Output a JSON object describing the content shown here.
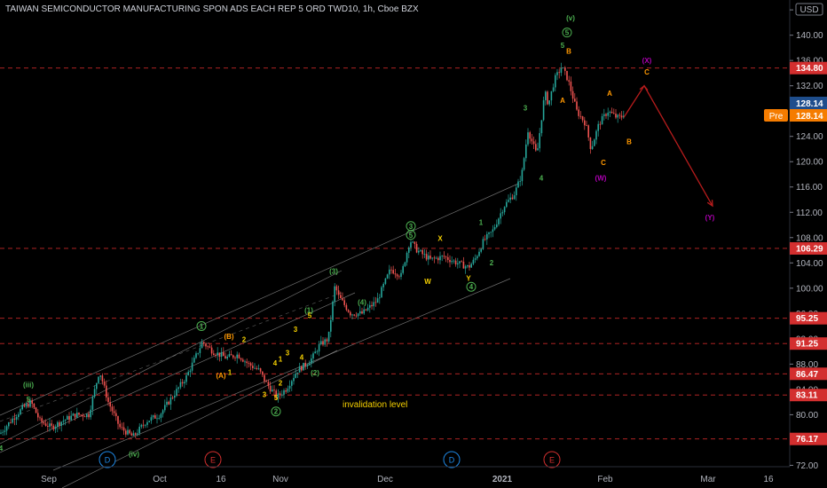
{
  "header": {
    "title": "TAIWAN SEMICONDUCTOR MANUFACTURING SPON ADS EACH REP 5 ORD TWD10, 1h, Cboe BZX",
    "currency": "USD"
  },
  "colors": {
    "background": "#000000",
    "level_line": "#c62828",
    "level_tag": "#d32f2f",
    "last_price_tag": "#1e4d8c",
    "pre_tag": "#f57c00",
    "candle_up": "#26a69a",
    "candle_down": "#ef5350",
    "projection": "#b71c1c",
    "channel": "#9e9e9e"
  },
  "annotation": {
    "text": "invalidation level",
    "color": "#f5d000"
  },
  "last_price": "128.14",
  "pre": {
    "label": "Pre",
    "value": "128.14"
  },
  "chart_data": {
    "type": "candlestick",
    "title": "TAIWAN SEMICONDUCTOR MANUFACTURING SPON ADS EACH REP 5 ORD TWD10, 1h, Cboe BZX",
    "y_axis_ticks": [
      "144.00",
      "140.00",
      "136.00",
      "132.00",
      "128.00",
      "124.00",
      "120.00",
      "116.00",
      "112.00",
      "108.00",
      "104.00",
      "100.00",
      "96.00",
      "92.00",
      "88.00",
      "84.00",
      "80.00",
      "76.00",
      "72.00"
    ],
    "ylim": [
      71.5,
      145
    ],
    "x_axis_ticks": [
      "Sep",
      "Oct",
      "16",
      "Nov",
      "Dec",
      "2021",
      "Feb",
      "Mar",
      "16"
    ],
    "levels": [
      "134.80",
      "128.14",
      "106.29",
      "95.25",
      "91.25",
      "86.47",
      "83.11",
      "76.17"
    ],
    "price_path": [
      [
        0,
        77
      ],
      [
        12,
        79
      ],
      [
        25,
        81
      ],
      [
        35,
        82
      ],
      [
        45,
        79
      ],
      [
        58,
        78
      ],
      [
        70,
        79
      ],
      [
        85,
        80
      ],
      [
        100,
        80
      ],
      [
        112,
        87
      ],
      [
        122,
        82
      ],
      [
        135,
        78
      ],
      [
        150,
        76.5
      ],
      [
        165,
        79
      ],
      [
        180,
        80
      ],
      [
        195,
        83
      ],
      [
        210,
        86
      ],
      [
        220,
        89
      ],
      [
        228,
        91.5
      ],
      [
        240,
        90
      ],
      [
        255,
        89
      ],
      [
        268,
        89.5
      ],
      [
        280,
        88
      ],
      [
        292,
        87
      ],
      [
        300,
        85
      ],
      [
        312,
        82.8
      ],
      [
        322,
        84
      ],
      [
        335,
        87
      ],
      [
        345,
        88
      ],
      [
        352,
        89
      ],
      [
        360,
        91
      ],
      [
        370,
        92
      ],
      [
        378,
        101
      ],
      [
        380,
        99
      ],
      [
        395,
        96
      ],
      [
        408,
        96
      ],
      [
        425,
        98
      ],
      [
        440,
        103
      ],
      [
        452,
        102
      ],
      [
        462,
        107.6
      ],
      [
        470,
        106
      ],
      [
        485,
        104.5
      ],
      [
        500,
        105
      ],
      [
        515,
        104
      ],
      [
        528,
        103.3
      ],
      [
        535,
        104.5
      ],
      [
        545,
        107.5
      ],
      [
        555,
        109
      ],
      [
        568,
        113
      ],
      [
        580,
        115
      ],
      [
        588,
        118
      ],
      [
        595,
        125
      ],
      [
        605,
        121
      ],
      [
        614,
        131
      ],
      [
        618,
        129
      ],
      [
        625,
        133
      ],
      [
        633,
        135
      ],
      [
        640,
        133
      ],
      [
        650,
        128
      ],
      [
        660,
        126
      ],
      [
        666,
        122
      ],
      [
        675,
        126
      ],
      [
        685,
        128
      ],
      [
        695,
        127
      ],
      [
        700,
        127
      ],
      [
        705,
        128.1
      ]
    ],
    "waves": [
      {
        "label": "(iii)",
        "x": 32,
        "y": 84.5,
        "color": "#4caf50",
        "size": "big"
      },
      {
        "label": "(iv)",
        "x": 151,
        "y": 73.5,
        "color": "#4caf50",
        "size": "big"
      },
      {
        "label": "(v)",
        "x": 643,
        "y": 142.5,
        "color": "#4caf50",
        "size": "big"
      },
      {
        "label": "5",
        "x": 32,
        "y": 82,
        "color": "#4caf50"
      },
      {
        "label": "4",
        "x": 1,
        "y": 74.3,
        "color": "#4caf50"
      },
      {
        "label": "1",
        "x": 227,
        "y": 93.6,
        "color": "#4caf50",
        "circle": true
      },
      {
        "label": "2",
        "x": 311,
        "y": 80.1,
        "color": "#4caf50",
        "circle": true
      },
      {
        "label": "3",
        "x": 463,
        "y": 109.4,
        "color": "#4caf50",
        "circle": true
      },
      {
        "label": "4",
        "x": 531,
        "y": 99.8,
        "color": "#4caf50",
        "circle": true
      },
      {
        "label": "5",
        "x": 639,
        "y": 140,
        "color": "#4caf50",
        "circle": true
      },
      {
        "label": "5",
        "x": 463,
        "y": 108,
        "color": "#4caf50",
        "circle": true
      },
      {
        "label": "(3)",
        "x": 376,
        "y": 102.3,
        "color": "#4caf50"
      },
      {
        "label": "(4)",
        "x": 408,
        "y": 97.4,
        "color": "#4caf50"
      },
      {
        "label": "(1)",
        "x": 348,
        "y": 96.1,
        "color": "#4caf50"
      },
      {
        "label": "(2)",
        "x": 355,
        "y": 86.2,
        "color": "#4caf50"
      },
      {
        "label": "5",
        "x": 349,
        "y": 95.3,
        "color": "#f5d000"
      },
      {
        "label": "3",
        "x": 333,
        "y": 93.1,
        "color": "#f5d000"
      },
      {
        "label": "4",
        "x": 340,
        "y": 88.7,
        "color": "#f5d000"
      },
      {
        "label": "1",
        "x": 316,
        "y": 88.4,
        "color": "#f5d000"
      },
      {
        "label": "3",
        "x": 324,
        "y": 89.4,
        "color": "#f5d000"
      },
      {
        "label": "4",
        "x": 310,
        "y": 87.8,
        "color": "#f5d000"
      },
      {
        "label": "2",
        "x": 316,
        "y": 84.6,
        "color": "#f5d000"
      },
      {
        "label": "3",
        "x": 298,
        "y": 82.8,
        "color": "#f5d000"
      },
      {
        "label": "5",
        "x": 311,
        "y": 82.3,
        "color": "#f5d000"
      },
      {
        "label": "1",
        "x": 259,
        "y": 86.3,
        "color": "#f5d000"
      },
      {
        "label": "2",
        "x": 275,
        "y": 91.5,
        "color": "#f5d000"
      },
      {
        "label": "(B)",
        "x": 258,
        "y": 92,
        "color": "#ff9800"
      },
      {
        "label": "(A)",
        "x": 249,
        "y": 85.8,
        "color": "#ff9800"
      },
      {
        "label": "X",
        "x": 496,
        "y": 107.5,
        "color": "#f5d000"
      },
      {
        "label": "W",
        "x": 482,
        "y": 100.7,
        "color": "#f5d000"
      },
      {
        "label": "Y",
        "x": 528,
        "y": 101.2,
        "color": "#f5d000"
      },
      {
        "label": "1",
        "x": 542,
        "y": 110,
        "color": "#4caf50"
      },
      {
        "label": "2",
        "x": 554,
        "y": 103.6,
        "color": "#4caf50"
      },
      {
        "label": "3",
        "x": 592,
        "y": 128.1,
        "color": "#4caf50"
      },
      {
        "label": "4",
        "x": 610,
        "y": 117,
        "color": "#4caf50"
      },
      {
        "label": "5",
        "x": 634,
        "y": 138,
        "color": "#4caf50"
      },
      {
        "label": "B",
        "x": 641,
        "y": 137.1,
        "color": "#ff9800"
      },
      {
        "label": "A",
        "x": 634,
        "y": 129.3,
        "color": "#ff9800"
      },
      {
        "label": "A",
        "x": 687,
        "y": 130.4,
        "color": "#ff9800"
      },
      {
        "label": "B",
        "x": 709,
        "y": 122.8,
        "color": "#ff9800"
      },
      {
        "label": "C",
        "x": 680,
        "y": 119.5,
        "color": "#ff9800"
      },
      {
        "label": "C",
        "x": 729,
        "y": 133.8,
        "color": "#ff9800"
      },
      {
        "label": "(X)",
        "x": 729,
        "y": 135.6,
        "color": "#b000b5"
      },
      {
        "label": "(W)",
        "x": 677,
        "y": 117,
        "color": "#b000b5"
      },
      {
        "label": "(Y)",
        "x": 800,
        "y": 110.8,
        "color": "#b000b5"
      }
    ],
    "time_markers": [
      {
        "label": "D",
        "x": 121,
        "color": "#1e88e5"
      },
      {
        "label": "E",
        "x": 240,
        "color": "#d32f2f"
      },
      {
        "label": "D",
        "x": 509,
        "color": "#1e88e5"
      },
      {
        "label": "E",
        "x": 622,
        "color": "#d32f2f"
      }
    ],
    "projection": [
      [
        703,
        127
      ],
      [
        726,
        132
      ],
      [
        803,
        113
      ]
    ]
  }
}
